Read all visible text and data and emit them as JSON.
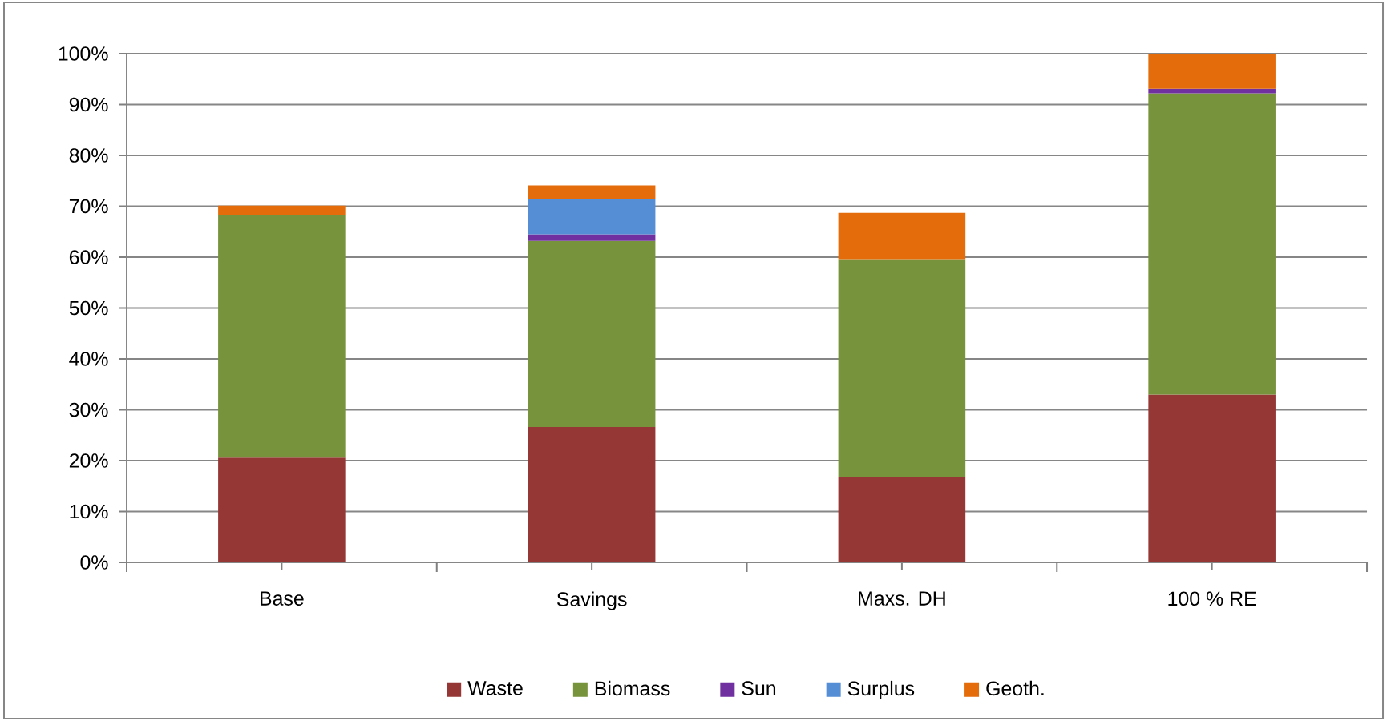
{
  "chart_data": {
    "type": "bar",
    "stacked": true,
    "categories": [
      "Base",
      "Savings",
      "Maxs. DH",
      "100 % RE"
    ],
    "series": [
      {
        "name": "Waste",
        "color": "#953735",
        "values": [
          20.6,
          26.6,
          16.8,
          33.0
        ]
      },
      {
        "name": "Biomass",
        "color": "#77933c",
        "values": [
          47.7,
          36.6,
          42.8,
          59.2
        ]
      },
      {
        "name": "Sun",
        "color": "#7030a0",
        "values": [
          null,
          1.3,
          null,
          0.9
        ]
      },
      {
        "name": "Surplus",
        "color": "#558ed5",
        "values": [
          null,
          6.9,
          null,
          null
        ]
      },
      {
        "name": "Geoth.",
        "color": "#e46c0a",
        "values": [
          1.8,
          2.7,
          9.1,
          6.9
        ]
      }
    ],
    "ylim": [
      0,
      100
    ],
    "yticks": [
      {
        "value": 0,
        "label": "0%"
      },
      {
        "value": 10,
        "label": "10%"
      },
      {
        "value": 20,
        "label": "20%"
      },
      {
        "value": 30,
        "label": "30%"
      },
      {
        "value": 40,
        "label": "40%"
      },
      {
        "value": 50,
        "label": "50%"
      },
      {
        "value": 60,
        "label": "60%"
      },
      {
        "value": 70,
        "label": "70%"
      },
      {
        "value": 80,
        "label": "80%"
      },
      {
        "value": 90,
        "label": "90%"
      },
      {
        "value": 100,
        "label": "100%"
      }
    ],
    "grid": "y",
    "legend": "bottom"
  }
}
